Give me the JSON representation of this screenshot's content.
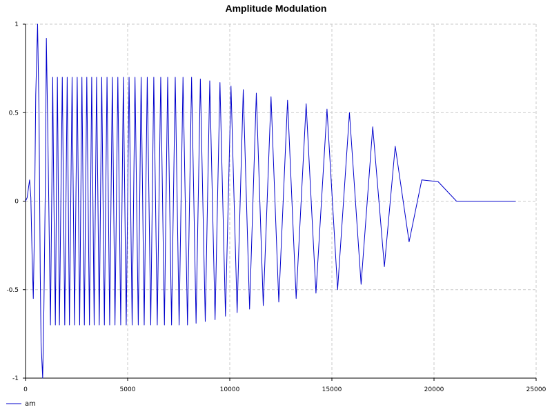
{
  "chart_data": {
    "type": "line",
    "title": "Amplitude Modulation",
    "xlabel": "",
    "ylabel": "",
    "xlim": [
      0,
      25000
    ],
    "ylim": [
      -1,
      1
    ],
    "x_ticks": [
      0,
      5000,
      10000,
      15000,
      20000,
      25000
    ],
    "x_tick_labels": [
      "0",
      "5000",
      "10000",
      "15000",
      "20000",
      "25000"
    ],
    "y_ticks": [
      -1,
      -0.5,
      0,
      0.5,
      1
    ],
    "y_tick_labels": [
      "-1",
      "-0.5",
      "0",
      "0.5",
      "1"
    ],
    "grid": true,
    "legend_position": "bottom-left",
    "series": [
      {
        "name": "am",
        "color": "#0000cc",
        "x": [
          0,
          80,
          150,
          200,
          260,
          320,
          380,
          430,
          500,
          590,
          660,
          720,
          760,
          840,
          900,
          980,
          1020,
          1090,
          1220,
          1290,
          1330,
          1370,
          1460,
          1560,
          1660,
          1800,
          1920,
          2040,
          2150,
          2280,
          2400,
          2530,
          2650,
          2760,
          2880,
          3000,
          3130,
          3240,
          3360,
          3480,
          3610,
          3730,
          3860,
          3990,
          4120,
          4250,
          4380,
          4520,
          4660,
          4790,
          4930,
          5070,
          5220,
          5360,
          5520,
          5660,
          5810,
          5960,
          6130,
          6280,
          6450,
          6620,
          6800,
          6960,
          7150,
          7330,
          7520,
          7710,
          7930,
          8130,
          8350,
          8560,
          8800,
          9020,
          9280,
          9520,
          9790,
          10060,
          10360,
          10660,
          10970,
          11300,
          11640,
          12020,
          12400,
          12830,
          13250,
          13740,
          14220,
          14760,
          15280,
          15860,
          16430,
          17000,
          17570,
          18100,
          18780,
          19400,
          20200,
          21100,
          21950,
          22700,
          23000,
          24000
        ],
        "y": [
          0,
          0.02,
          0.08,
          0.12,
          0.02,
          -0.3,
          -0.55,
          -0.2,
          0.6,
          1.0,
          0.5,
          -0.4,
          -0.8,
          -1.0,
          -0.6,
          0.2,
          0.92,
          0.4,
          -0.7,
          0.1,
          0.7,
          0.2,
          -0.7,
          0.7,
          -0.7,
          0.7,
          -0.7,
          0.7,
          -0.7,
          0.7,
          -0.7,
          0.7,
          -0.7,
          0.7,
          -0.7,
          0.7,
          -0.7,
          0.7,
          -0.7,
          0.7,
          -0.7,
          0.7,
          -0.7,
          0.7,
          -0.7,
          0.7,
          -0.7,
          0.7,
          -0.7,
          0.7,
          -0.7,
          0.7,
          -0.7,
          0.7,
          -0.7,
          0.7,
          -0.7,
          0.7,
          -0.7,
          0.7,
          -0.7,
          0.7,
          -0.7,
          0.7,
          -0.7,
          0.7,
          -0.7,
          0.7,
          -0.7,
          0.7,
          -0.69,
          0.69,
          -0.68,
          0.68,
          -0.67,
          0.67,
          -0.65,
          0.65,
          -0.63,
          0.63,
          -0.61,
          0.61,
          -0.59,
          0.59,
          -0.57,
          0.57,
          -0.55,
          0.55,
          -0.52,
          0.52,
          -0.5,
          0.5,
          -0.47,
          0.42,
          -0.37,
          0.31,
          -0.23,
          0.12,
          0.11,
          0.0,
          0.0,
          0.0,
          0.0,
          0.0
        ]
      }
    ]
  }
}
